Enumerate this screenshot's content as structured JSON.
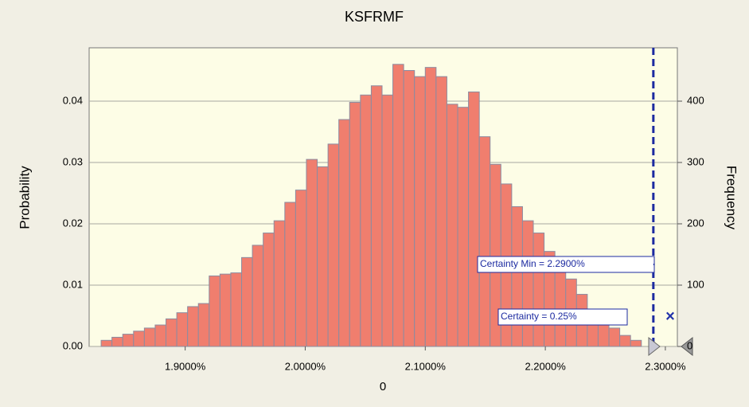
{
  "chart_data": {
    "type": "histogram",
    "title": "KSFRMF",
    "xlabel": "0",
    "ylabel": "Probability",
    "y2label": "Frequency",
    "bins": [
      1.83,
      1.839,
      1.848,
      1.857,
      1.866,
      1.875,
      1.884,
      1.893,
      1.902,
      1.911,
      1.92,
      1.929,
      1.938,
      1.947,
      1.956,
      1.965,
      1.974,
      1.983,
      1.992,
      2.001,
      2.01,
      2.019,
      2.028,
      2.037,
      2.046,
      2.055,
      2.064,
      2.073,
      2.082,
      2.091,
      2.1,
      2.109,
      2.118,
      2.127,
      2.136,
      2.145,
      2.154,
      2.163,
      2.172,
      2.181,
      2.19,
      2.199,
      2.208,
      2.217,
      2.226,
      2.235,
      2.244,
      2.253,
      2.262,
      2.271,
      2.28
    ],
    "values": [
      0.001,
      0.0015,
      0.002,
      0.0025,
      0.003,
      0.0035,
      0.0045,
      0.0055,
      0.0065,
      0.007,
      0.0115,
      0.0118,
      0.012,
      0.0145,
      0.0165,
      0.0185,
      0.0205,
      0.0235,
      0.0255,
      0.0305,
      0.0293,
      0.033,
      0.037,
      0.0398,
      0.041,
      0.0425,
      0.041,
      0.046,
      0.045,
      0.044,
      0.0455,
      0.044,
      0.0395,
      0.039,
      0.0415,
      0.0342,
      0.0297,
      0.0265,
      0.0228,
      0.0205,
      0.0185,
      0.0155,
      0.013,
      0.011,
      0.0085,
      0.006,
      0.0045,
      0.003,
      0.0018,
      0.001
    ],
    "color": "#f07e6e",
    "xlim": [
      1.82,
      2.31
    ],
    "xticks": [
      {
        "value": 1.9,
        "label": "1.9000%"
      },
      {
        "value": 2.0,
        "label": "2.0000%"
      },
      {
        "value": 2.1,
        "label": "2.1000%"
      },
      {
        "value": 2.2,
        "label": "2.2000%"
      },
      {
        "value": 2.3,
        "label": "2.3000%"
      }
    ],
    "ylim": [
      0,
      0.0487
    ],
    "yticks": [
      {
        "value": 0,
        "label": "0.00"
      },
      0.01,
      0.02,
      0.03,
      0.04
    ],
    "y2lim": [
      0,
      487
    ],
    "y2ticks": [
      0,
      100,
      200,
      300,
      400
    ],
    "grid": true,
    "certainty_min": 2.29,
    "annotations": [
      "Certainty Min = 2.2900%",
      "Certainty = 0.25%"
    ]
  }
}
